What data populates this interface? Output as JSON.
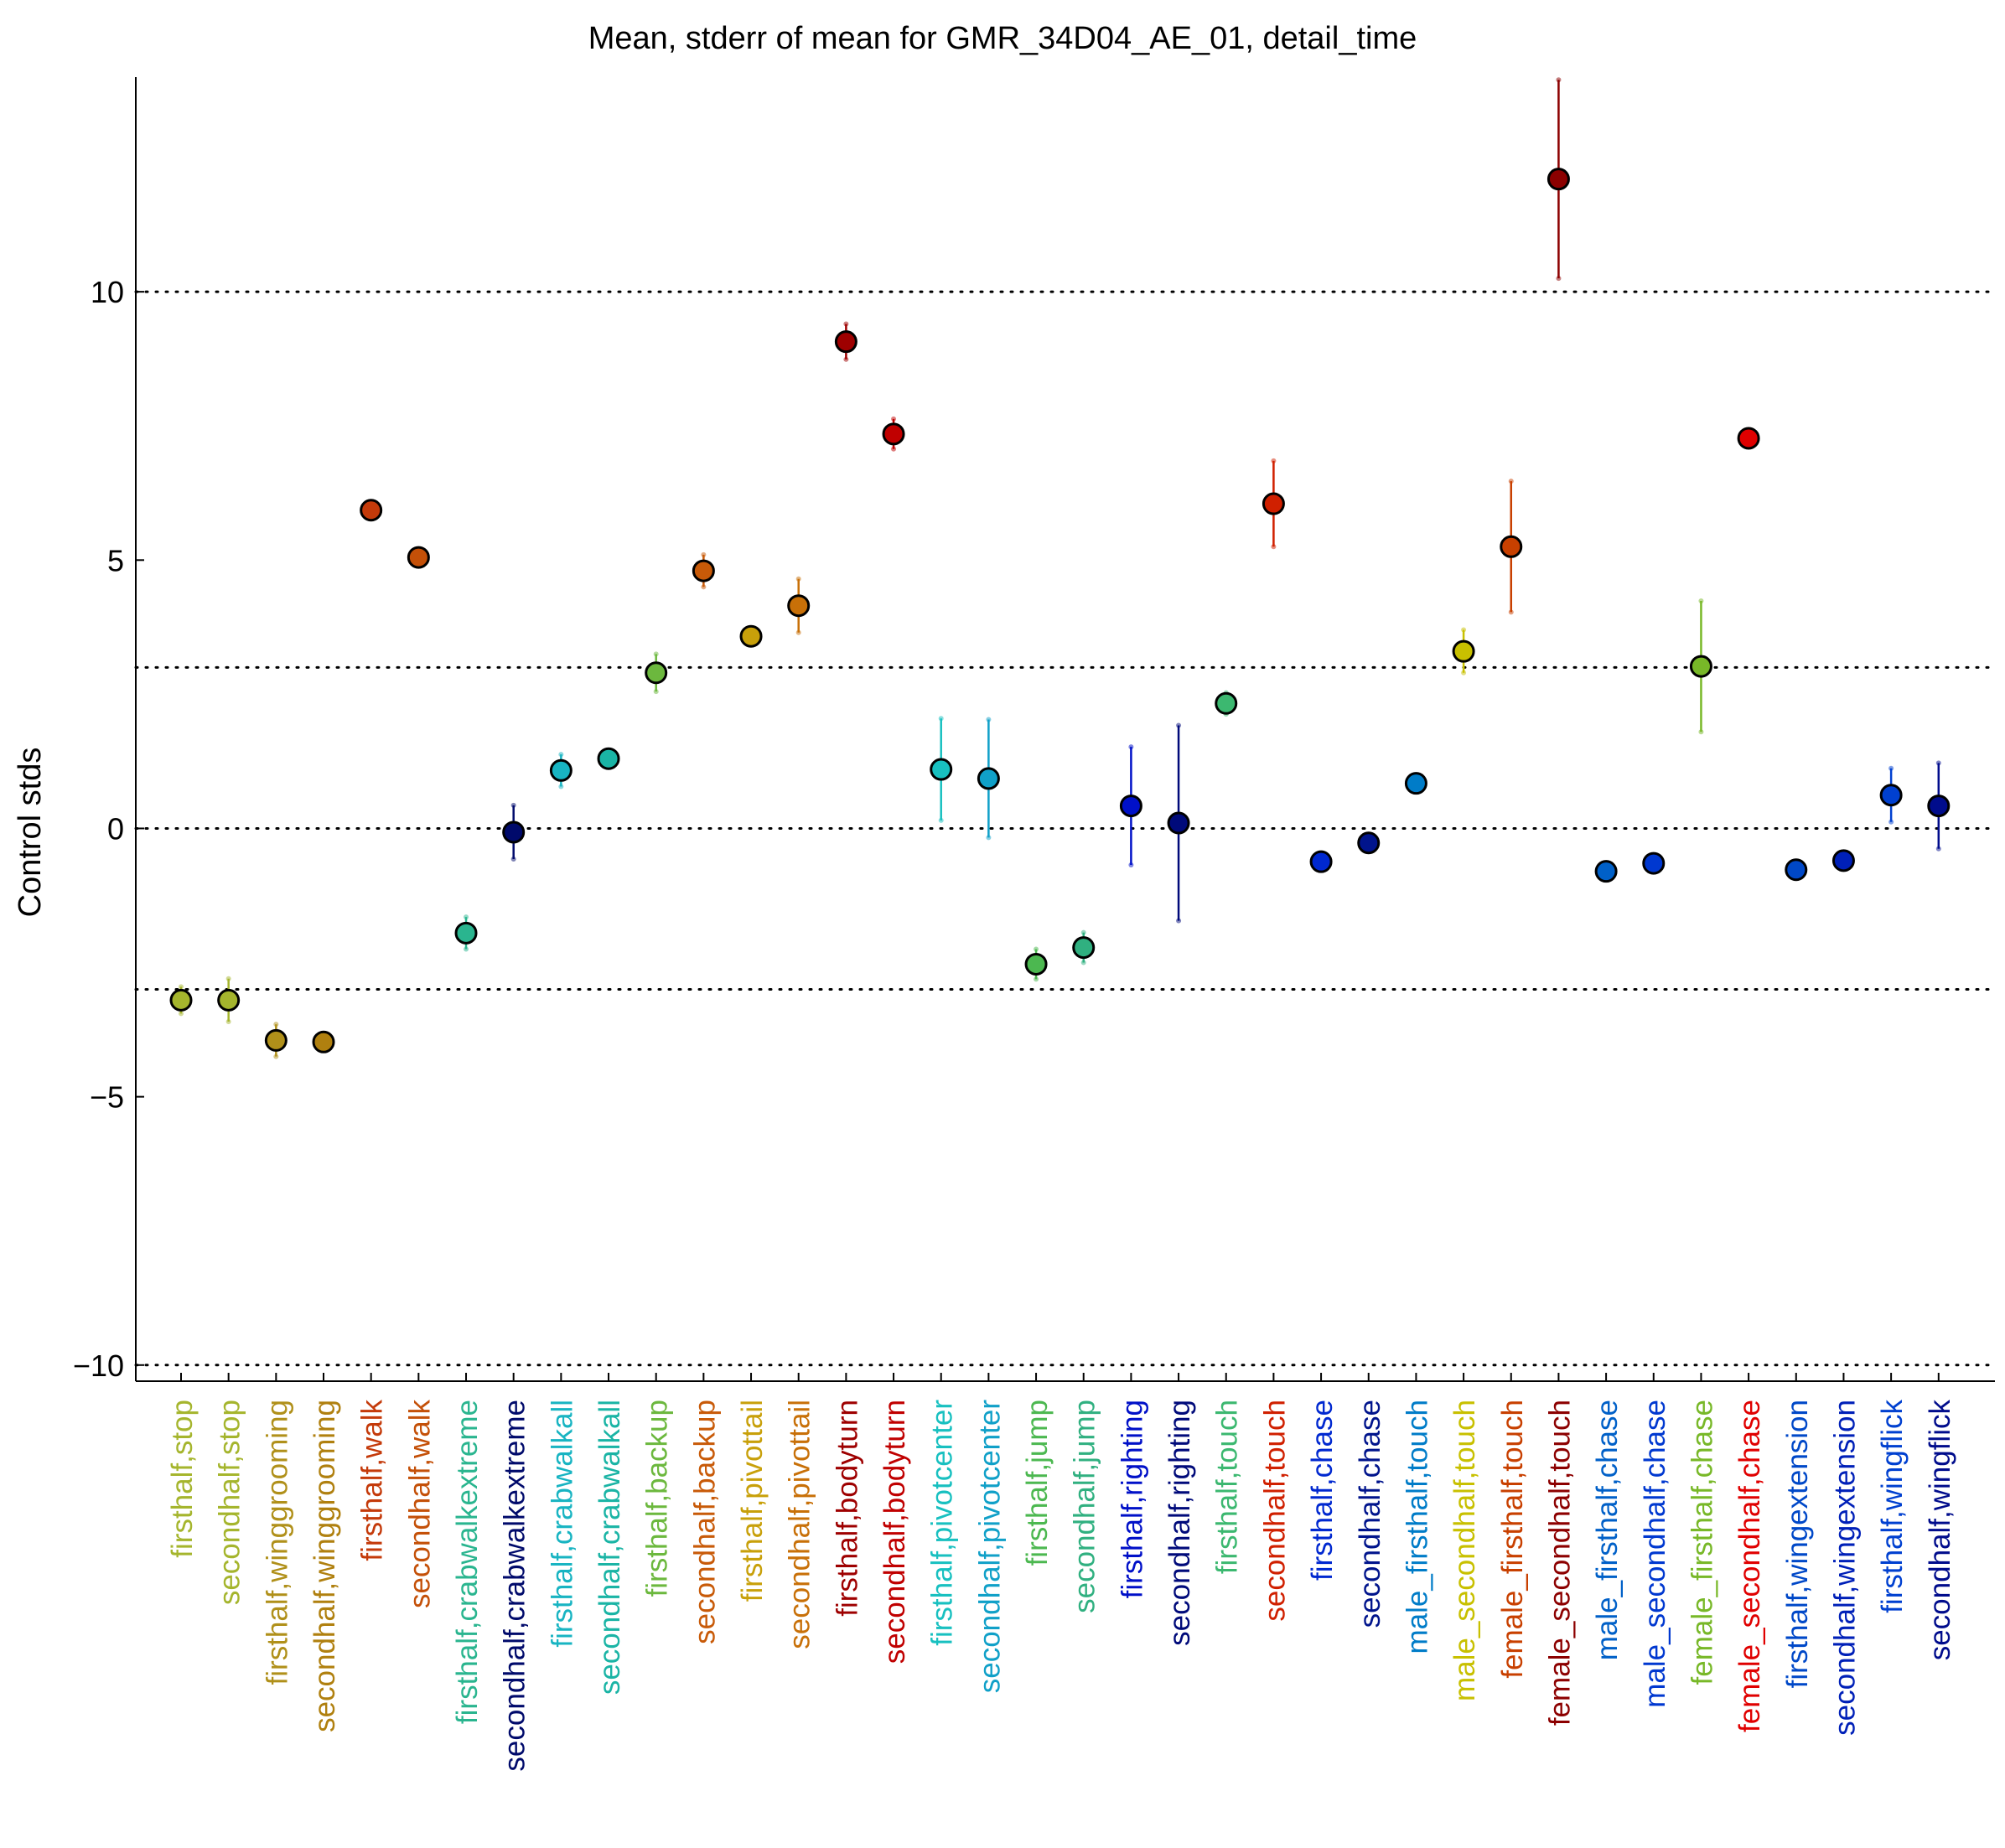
{
  "chart_data": {
    "type": "scatter",
    "title": "Mean, stderr of mean for GMR_34D04_AE_01, detail_time",
    "xlabel": "",
    "ylabel": "Control stds",
    "ylim": [
      -10.3,
      14.0
    ],
    "yticks": [
      -10,
      -5,
      0,
      5,
      10
    ],
    "ytick_labels": [
      "−10",
      "−5",
      "0",
      "5",
      "10"
    ],
    "reference_lines": [
      -10,
      -3,
      0,
      3,
      10
    ],
    "grid": false,
    "legend": "none",
    "marker_edge_color": "#000000",
    "points": [
      {
        "label": "firsthalf,stop",
        "mean": -3.2,
        "err": 0.25,
        "color": "#a5b52d"
      },
      {
        "label": "secondhalf,stop",
        "mean": -3.2,
        "err": 0.4,
        "color": "#a5b52d"
      },
      {
        "label": "firsthalf,winggrooming",
        "mean": -3.95,
        "err": 0.3,
        "color": "#b0901a"
      },
      {
        "label": "secondhalf,winggrooming",
        "mean": -3.98,
        "err": 0.12,
        "color": "#b0800f"
      },
      {
        "label": "firsthalf,walk",
        "mean": 5.93,
        "err": 0.12,
        "color": "#c43a0a"
      },
      {
        "label": "secondhalf,walk",
        "mean": 5.05,
        "err": 0.1,
        "color": "#c45008"
      },
      {
        "label": "firsthalf,crabwalkextreme",
        "mean": -1.95,
        "err": 0.3,
        "color": "#2ab58f"
      },
      {
        "label": "secondhalf,crabwalkextreme",
        "mean": -0.07,
        "err": 0.5,
        "color": "#000a6b"
      },
      {
        "label": "firsthalf,crabwalkall",
        "mean": 1.08,
        "err": 0.3,
        "color": "#18b4c2"
      },
      {
        "label": "secondhalf,crabwalkall",
        "mean": 1.3,
        "err": 0.12,
        "color": "#1ab4a5"
      },
      {
        "label": "firsthalf,backup",
        "mean": 2.9,
        "err": 0.35,
        "color": "#6cb83e"
      },
      {
        "label": "secondhalf,backup",
        "mean": 4.8,
        "err": 0.3,
        "color": "#c85a08"
      },
      {
        "label": "firsthalf,pivottail",
        "mean": 3.58,
        "err": 0.1,
        "color": "#c8a00a"
      },
      {
        "label": "secondhalf,pivottail",
        "mean": 4.15,
        "err": 0.5,
        "color": "#c87008"
      },
      {
        "label": "firsthalf,bodyturn",
        "mean": 9.07,
        "err": 0.33,
        "color": "#9e0000"
      },
      {
        "label": "secondhalf,bodyturn",
        "mean": 7.35,
        "err": 0.28,
        "color": "#c00000"
      },
      {
        "label": "firsthalf,pivotcenter",
        "mean": 1.1,
        "err": 0.95,
        "color": "#18c0c0"
      },
      {
        "label": "secondhalf,pivotcenter",
        "mean": 0.93,
        "err": 1.1,
        "color": "#10a0c8"
      },
      {
        "label": "firsthalf,jump",
        "mean": -2.53,
        "err": 0.28,
        "color": "#4cb850"
      },
      {
        "label": "secondhalf,jump",
        "mean": -2.22,
        "err": 0.28,
        "color": "#30b080"
      },
      {
        "label": "firsthalf,righting",
        "mean": 0.42,
        "err": 1.1,
        "color": "#0010c8"
      },
      {
        "label": "secondhalf,righting",
        "mean": 0.1,
        "err": 1.82,
        "color": "#000a7a"
      },
      {
        "label": "firsthalf,touch",
        "mean": 2.33,
        "err": 0.2,
        "color": "#3cb870"
      },
      {
        "label": "secondhalf,touch",
        "mean": 6.05,
        "err": 0.8,
        "color": "#d02000"
      },
      {
        "label": "firsthalf,chase",
        "mean": -0.62,
        "err": 0.05,
        "color": "#0028d0"
      },
      {
        "label": "secondhalf,chase",
        "mean": -0.27,
        "err": 0.05,
        "color": "#00148c"
      },
      {
        "label": "male_firsthalf,touch",
        "mean": 0.84,
        "err": 0.05,
        "color": "#007cc8"
      },
      {
        "label": "male_secondhalf,touch",
        "mean": 3.3,
        "err": 0.4,
        "color": "#c8c000"
      },
      {
        "label": "female_firsthalf,touch",
        "mean": 5.25,
        "err": 1.22,
        "color": "#c84000"
      },
      {
        "label": "female_secondhalf,touch",
        "mean": 12.1,
        "err": 1.85,
        "color": "#8c0000"
      },
      {
        "label": "male_firsthalf,chase",
        "mean": -0.8,
        "err": 0.05,
        "color": "#0060c8"
      },
      {
        "label": "male_secondhalf,chase",
        "mean": -0.65,
        "err": 0.05,
        "color": "#0038d0"
      },
      {
        "label": "female_firsthalf,chase",
        "mean": 3.02,
        "err": 1.22,
        "color": "#78b828"
      },
      {
        "label": "female_secondhalf,chase",
        "mean": 7.27,
        "err": 0.05,
        "color": "#e00000"
      },
      {
        "label": "firsthalf,wingextension",
        "mean": -0.77,
        "err": 0.05,
        "color": "#0048c8"
      },
      {
        "label": "secondhalf,wingextension",
        "mean": -0.6,
        "err": 0.05,
        "color": "#0020b8"
      },
      {
        "label": "firsthalf,wingflick",
        "mean": 0.62,
        "err": 0.5,
        "color": "#0040d0"
      },
      {
        "label": "secondhalf,wingflick",
        "mean": 0.42,
        "err": 0.8,
        "color": "#000c8c"
      }
    ]
  }
}
